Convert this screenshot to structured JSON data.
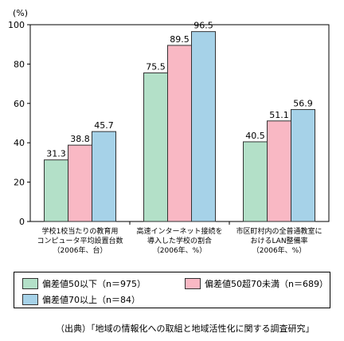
{
  "chart_data": {
    "type": "bar",
    "unit_label": "(%)",
    "ylim": [
      0,
      100
    ],
    "yticks": [
      "0",
      "20",
      "40",
      "60",
      "80",
      "100"
    ],
    "categories": [
      [
        "学校1校当たりの教育用",
        "コンピュータ平均設置台数",
        "（2006年、台）"
      ],
      [
        "高速インターネット接続を",
        "導入した学校の割合",
        "（2006年、%）"
      ],
      [
        "市区町村内の全普通教室に",
        "おけるLAN整備率",
        "（2006年、%）"
      ]
    ],
    "series": [
      {
        "name": "偏差値50以下（n＝975）",
        "color": "#b3e0c8",
        "values": [
          31.3,
          75.5,
          40.5
        ]
      },
      {
        "name": "偏差値50超70未満（n＝689）",
        "color": "#f9b8c4",
        "values": [
          38.8,
          89.5,
          51.1
        ]
      },
      {
        "name": "偏差値70以上（n＝84）",
        "color": "#a6d2e8",
        "values": [
          45.7,
          96.5,
          56.9
        ]
      }
    ],
    "grid": false,
    "legend": "bottom"
  },
  "source": "（出典）「地域の情報化への取組と地域活性化に関する調査研究」"
}
